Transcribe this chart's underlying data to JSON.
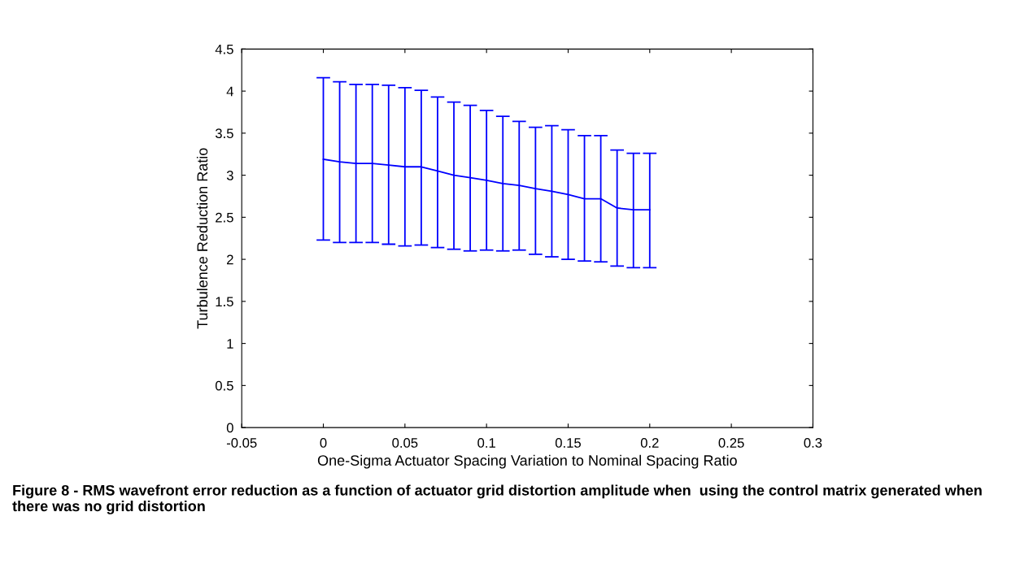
{
  "chart_data": {
    "type": "line",
    "xlabel": "One-Sigma Actuator Spacing Variation to Nominal Spacing Ratio",
    "ylabel": "Turbulence Reduction Ratio",
    "annotations": [
      "Figure 8 - RMS wavefront error reduction as a function of actuator grid distortion amplitude when  using the control matrix generated when there was no grid distortion"
    ],
    "x": [
      0,
      0.01,
      0.02,
      0.03,
      0.04,
      0.05,
      0.06,
      0.07,
      0.08,
      0.09,
      0.1,
      0.11,
      0.12,
      0.13,
      0.14,
      0.15,
      0.16,
      0.17,
      0.18,
      0.19,
      0.2
    ],
    "series": [
      {
        "color": "#0000ff",
        "values": [
          3.19,
          3.16,
          3.14,
          3.14,
          3.12,
          3.1,
          3.1,
          3.05,
          3.0,
          2.97,
          2.94,
          2.9,
          2.88,
          2.84,
          2.81,
          2.77,
          2.72,
          2.72,
          2.61,
          2.59,
          2.59
        ],
        "errors": [
          [
            2.23,
            4.16
          ],
          [
            2.2,
            4.11
          ],
          [
            2.2,
            4.08
          ],
          [
            2.2,
            4.08
          ],
          [
            2.18,
            4.07
          ],
          [
            2.16,
            4.04
          ],
          [
            2.17,
            4.01
          ],
          [
            2.14,
            3.93
          ],
          [
            2.12,
            3.87
          ],
          [
            2.1,
            3.83
          ],
          [
            2.11,
            3.77
          ],
          [
            2.1,
            3.7
          ],
          [
            2.11,
            3.64
          ],
          [
            2.06,
            3.57
          ],
          [
            2.03,
            3.59
          ],
          [
            2.0,
            3.54
          ],
          [
            1.98,
            3.47
          ],
          [
            1.97,
            3.47
          ],
          [
            1.92,
            3.3
          ],
          [
            1.9,
            3.26
          ],
          [
            1.9,
            3.26
          ]
        ]
      }
    ],
    "xlim": [
      -0.05,
      0.3
    ],
    "xticks": [
      {
        "value": -0.05,
        "label": "-0.05"
      },
      0,
      0.05,
      0.1,
      0.15,
      0.2,
      0.25,
      0.3
    ],
    "ylim": [
      0,
      4.5
    ],
    "yticks": [
      0,
      0.5,
      1,
      1.5,
      2,
      2.5,
      3,
      3.5,
      4,
      4.5
    ],
    "grid": false,
    "legend": false,
    "marker": "none",
    "line_style": "solid"
  }
}
